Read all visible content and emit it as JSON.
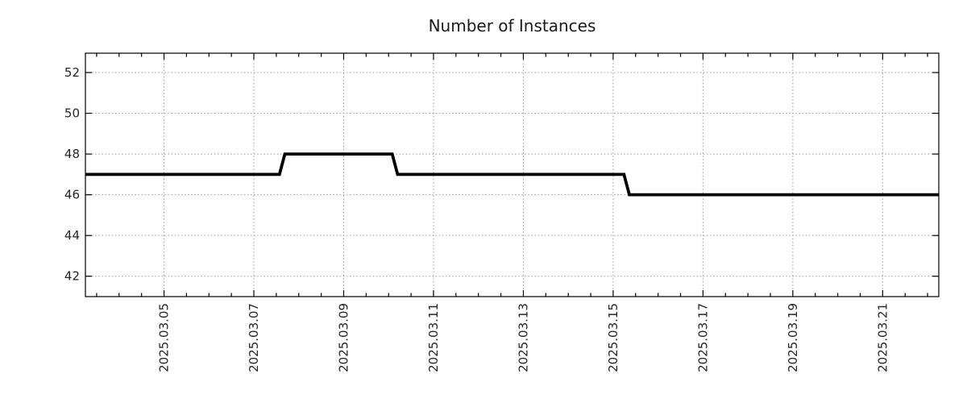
{
  "chart_data": {
    "type": "line",
    "title": "Number of Instances",
    "xlabel": "",
    "ylabel": "",
    "grid": true,
    "legend": "none",
    "line_style": "step",
    "colors": {
      "line": "#000000",
      "grid": "#999999",
      "axis": "#000000",
      "text": "#1a1a1a"
    },
    "x_unit": "days since 2025-03-01 00:00",
    "xlim": [
      2.25,
      21.25
    ],
    "ylim": [
      41.0,
      52.95
    ],
    "x_major_ticks": [
      {
        "value": 4,
        "label": "2025.03.05"
      },
      {
        "value": 6,
        "label": "2025.03.07"
      },
      {
        "value": 8,
        "label": "2025.03.09"
      },
      {
        "value": 10,
        "label": "2025.03.11"
      },
      {
        "value": 12,
        "label": "2025.03.13"
      },
      {
        "value": 14,
        "label": "2025.03.15"
      },
      {
        "value": 16,
        "label": "2025.03.17"
      },
      {
        "value": 18,
        "label": "2025.03.19"
      },
      {
        "value": 20,
        "label": "2025.03.21"
      }
    ],
    "x_minor_step": 0.5,
    "y_major_ticks": [
      {
        "value": 42,
        "label": "42"
      },
      {
        "value": 44,
        "label": "44"
      },
      {
        "value": 46,
        "label": "46"
      },
      {
        "value": 48,
        "label": "48"
      },
      {
        "value": 50,
        "label": "50"
      },
      {
        "value": 52,
        "label": "52"
      }
    ],
    "series": [
      {
        "name": "instances",
        "points": [
          [
            2.25,
            47
          ],
          [
            6.57,
            47
          ],
          [
            6.69,
            48
          ],
          [
            9.08,
            48
          ],
          [
            9.2,
            47
          ],
          [
            14.24,
            47
          ],
          [
            14.36,
            46
          ],
          [
            21.25,
            46
          ]
        ],
        "steps_readable": [
          {
            "from": "2025-03-03 ~06:00",
            "to": "2025-03-07 ~15:00",
            "value": 47
          },
          {
            "from": "2025-03-07 ~15:00",
            "to": "2025-03-10 ~04:00",
            "value": 48
          },
          {
            "from": "2025-03-10 ~04:00",
            "to": "2025-03-15 ~07:00",
            "value": 47
          },
          {
            "from": "2025-03-15 ~07:00",
            "to": "2025-03-22 ~06:00",
            "value": 46
          }
        ]
      }
    ]
  }
}
